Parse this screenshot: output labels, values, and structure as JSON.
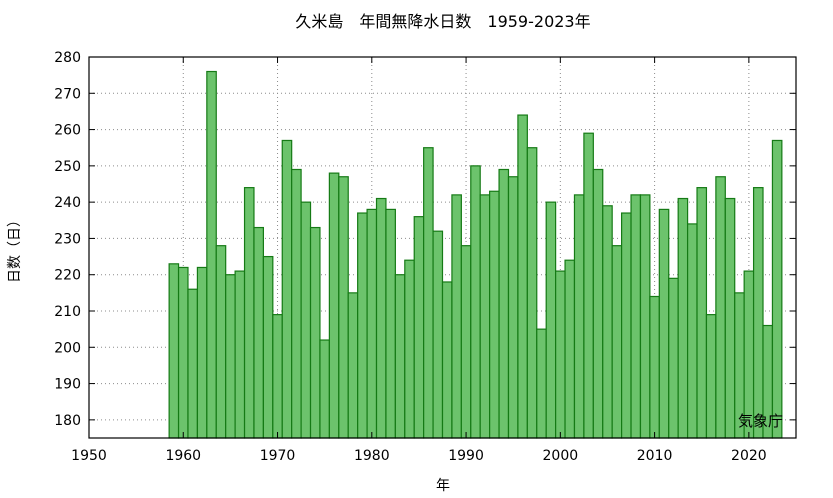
{
  "chart_data": {
    "type": "bar",
    "title": "久米島　年間無降水日数　1959-2023年",
    "xlabel": "年",
    "ylabel": "日数（日）",
    "note": "気象庁",
    "xlim": [
      1950,
      2025
    ],
    "ylim": [
      175,
      280
    ],
    "xticks": [
      1950,
      1960,
      1970,
      1980,
      1990,
      2000,
      2010,
      2020
    ],
    "yticks": [
      180,
      190,
      200,
      210,
      220,
      230,
      240,
      250,
      260,
      270,
      280
    ],
    "grid": true,
    "x": [
      1959,
      1960,
      1961,
      1962,
      1963,
      1964,
      1965,
      1966,
      1967,
      1968,
      1969,
      1970,
      1971,
      1972,
      1973,
      1974,
      1975,
      1976,
      1977,
      1978,
      1979,
      1980,
      1981,
      1982,
      1983,
      1984,
      1985,
      1986,
      1987,
      1988,
      1989,
      1990,
      1991,
      1992,
      1993,
      1994,
      1995,
      1996,
      1997,
      1998,
      1999,
      2000,
      2001,
      2002,
      2003,
      2004,
      2005,
      2006,
      2007,
      2008,
      2009,
      2010,
      2011,
      2012,
      2013,
      2014,
      2015,
      2016,
      2017,
      2018,
      2019,
      2020,
      2021,
      2022,
      2023
    ],
    "values": [
      223,
      222,
      216,
      222,
      276,
      228,
      220,
      221,
      244,
      233,
      225,
      209,
      257,
      249,
      240,
      233,
      202,
      248,
      247,
      215,
      237,
      238,
      241,
      238,
      220,
      224,
      236,
      255,
      232,
      218,
      242,
      228,
      250,
      242,
      243,
      249,
      247,
      264,
      255,
      205,
      240,
      221,
      224,
      242,
      259,
      249,
      239,
      228,
      237,
      242,
      242,
      214,
      238,
      219,
      241,
      234,
      244,
      209,
      247,
      241,
      215,
      221,
      244,
      206,
      257
    ]
  }
}
